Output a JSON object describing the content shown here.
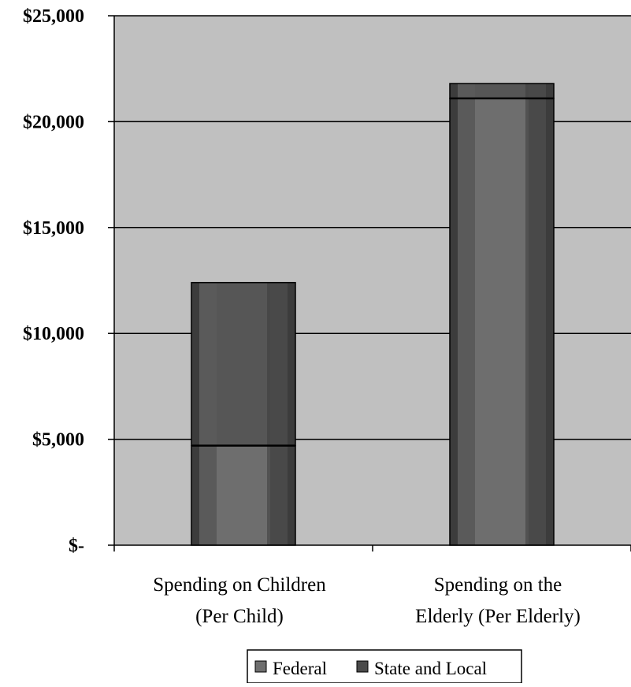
{
  "chart_data": {
    "type": "bar",
    "stacked": true,
    "categories": [
      [
        "Spending on Children",
        "(Per Child)"
      ],
      [
        "Spending on the",
        "Elderly (Per Elderly)"
      ]
    ],
    "series": [
      {
        "name": "Federal",
        "values": [
          4700,
          21100
        ]
      },
      {
        "name": "State and Local",
        "values": [
          7700,
          700
        ]
      }
    ],
    "ylim": [
      0,
      25000
    ],
    "yticks": [
      0,
      5000,
      10000,
      15000,
      20000,
      25000
    ],
    "ytick_labels": [
      "$-",
      "$5,000",
      "$10,000",
      "$15,000",
      "$20,000",
      "$25,000"
    ],
    "grid": true,
    "legend_position": "bottom",
    "colors": {
      "plot_background": "#c0c0c0",
      "bar_dark": "#3c3c3c",
      "bar_mid": "#5a5a5a",
      "federal_center": "#6e6e6e",
      "state_center": "#565656",
      "gridline": "#000000",
      "legend_swatch_federal": "#6e6e6e",
      "legend_swatch_state": "#4a4a4a"
    }
  }
}
